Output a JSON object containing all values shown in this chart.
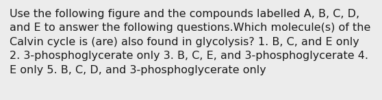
{
  "text": "Use the following figure and the compounds labelled A, B, C, D,\nand E to answer the following questions.Which molecule(s) of the\nCalvin cycle is (are) also found in glycolysis? 1. B, C, and E only\n2. 3-phosphoglycerate only 3. B, C, E, and 3-phosphoglycerate 4.\nE only 5. B, C, D, and 3-phosphoglycerate only",
  "background_color": "#ececec",
  "text_color": "#1a1a1a",
  "font_size": 11.5,
  "fig_width": 5.58,
  "fig_height": 1.46,
  "dpi": 100
}
